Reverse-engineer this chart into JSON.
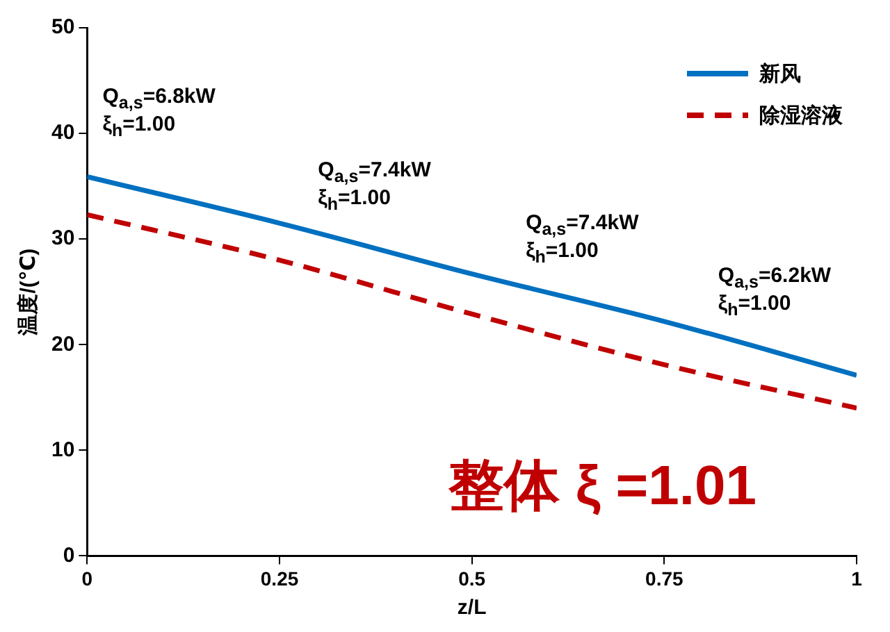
{
  "chart_data": {
    "type": "line",
    "xlabel": "z/L",
    "ylabel": "温度/(℃)",
    "x": [
      0,
      0.25,
      0.5,
      0.75,
      1
    ],
    "series": [
      {
        "name": "新风",
        "color": "#0070c0",
        "line_style": "solid",
        "values": [
          35.9,
          31.5,
          26.7,
          22.2,
          17.1
        ]
      },
      {
        "name": "除湿溶液",
        "color": "#c00000",
        "line_style": "dashed",
        "values": [
          32.3,
          28.0,
          22.9,
          18.1,
          14.0
        ]
      }
    ],
    "xlim": [
      0,
      1
    ],
    "xticks": [
      0,
      0.25,
      0.5,
      0.75,
      1
    ],
    "ylim": [
      0,
      50
    ],
    "yticks": [
      0,
      10,
      20,
      30,
      40,
      50
    ],
    "grid": false,
    "legend": "top right",
    "marker": "none",
    "annotations": [
      "Q$_{a,s}$=6.8kW",
      "ξ$_{h}$=1.00",
      "Q$_{a,s}$=7.4kW",
      "ξ$_{h}$=1.00",
      "Q$_{a,s}$=7.4kW",
      "ξ$_{h}$=1.00",
      "Q$_{a,s}$=6.2kW",
      "ξ$_{h}$=1.00",
      "整体 ξ =1.01"
    ]
  }
}
